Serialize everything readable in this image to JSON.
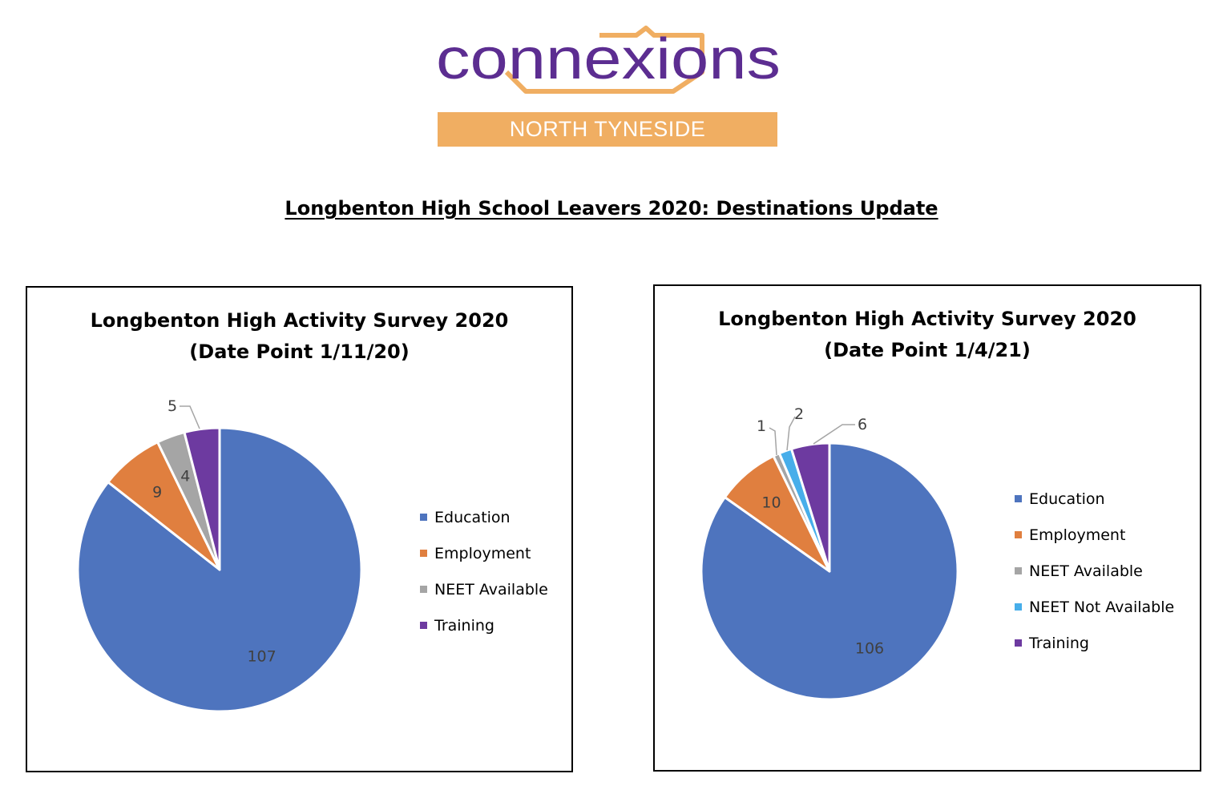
{
  "logo": {
    "wordmark": "connexions",
    "band_text": "NORTH TYNESIDE",
    "colors": {
      "purple": "#5c2d91",
      "orange": "#f0ae62"
    }
  },
  "page_title": "Longbenton High School Leavers 2020: Destinations Update",
  "colors": {
    "Education": "#4e74be",
    "Employment": "#e07f3f",
    "NEET Available": "#a5a5a5",
    "NEET Not Available": "#47aeea",
    "Training": "#6d3aa0"
  },
  "chart_data": [
    {
      "type": "pie",
      "title_line1": "Longbenton High Activity Survey 2020",
      "title_line2": "(Date Point 1/11/20)",
      "categories": [
        "Education",
        "Employment",
        "NEET Available",
        "Training"
      ],
      "values": [
        107,
        9,
        4,
        5
      ],
      "legend": [
        "Education",
        "Employment",
        "NEET Available",
        "Training"
      ],
      "legend_position": "right"
    },
    {
      "type": "pie",
      "title_line1": "Longbenton High Activity Survey 2020",
      "title_line2": "(Date Point 1/4/21)",
      "categories": [
        "Education",
        "Employment",
        "NEET Available",
        "NEET Not Available",
        "Training"
      ],
      "values": [
        106,
        10,
        1,
        2,
        6
      ],
      "legend": [
        "Education",
        "Employment",
        "NEET Available",
        "NEET Not Available",
        "Training"
      ],
      "legend_position": "right"
    }
  ]
}
